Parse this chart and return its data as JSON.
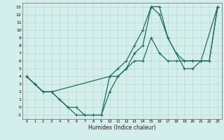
{
  "xlabel": "Humidex (Indice chaleur)",
  "xlim": [
    -0.5,
    23.5
  ],
  "ylim": [
    -1.5,
    13.5
  ],
  "xticks": [
    0,
    1,
    2,
    3,
    4,
    5,
    6,
    7,
    8,
    9,
    10,
    11,
    12,
    13,
    14,
    15,
    16,
    17,
    18,
    19,
    20,
    21,
    22,
    23
  ],
  "yticks": [
    -1,
    0,
    1,
    2,
    3,
    4,
    5,
    6,
    7,
    8,
    9,
    10,
    11,
    12,
    13
  ],
  "bg_color": "#d4eeeb",
  "line_color": "#1e6e62",
  "grid_color": "#b8d8d4",
  "lines": [
    {
      "x": [
        0,
        1,
        2,
        3,
        4,
        5,
        6,
        7,
        8,
        9,
        10,
        11,
        12,
        13,
        14,
        15,
        16,
        17,
        18,
        19,
        20,
        21,
        22,
        23
      ],
      "y": [
        4,
        3,
        2,
        2,
        1,
        0,
        0,
        -1,
        -1,
        -1,
        2,
        4,
        5,
        7,
        8,
        13,
        13,
        9,
        7,
        6,
        6,
        6,
        6,
        13
      ]
    },
    {
      "x": [
        0,
        1,
        2,
        3,
        5,
        6,
        7,
        8,
        9,
        10,
        11,
        12,
        13,
        14,
        15,
        16,
        17,
        19,
        20,
        21,
        23
      ],
      "y": [
        4,
        3,
        2,
        2,
        0,
        -1,
        -1,
        -1,
        -1,
        4,
        5,
        6,
        8,
        10,
        13,
        12,
        9,
        5,
        5,
        6,
        13
      ]
    },
    {
      "x": [
        0,
        1,
        2,
        3,
        10,
        11,
        12,
        13,
        14,
        15,
        16,
        17,
        18,
        19,
        20,
        21,
        22,
        23
      ],
      "y": [
        4,
        3,
        2,
        2,
        4,
        4,
        5,
        6,
        6,
        9,
        7,
        6,
        6,
        6,
        6,
        6,
        6,
        13
      ]
    }
  ]
}
